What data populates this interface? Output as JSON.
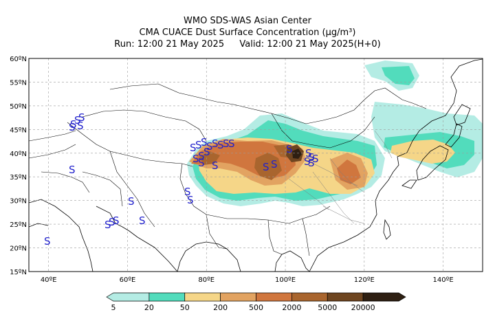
{
  "header": {
    "line1": "WMO SDS-WAS Asian Center",
    "line2": "CMA CUACE Dust Surface Concentration (μg/m³)",
    "run_label": "Run: 12:00 21 May 2025",
    "valid_label": "Valid: 12:00 21 May 2025(H+0)"
  },
  "map": {
    "lon_ticks": [
      "40ºE",
      "60ºE",
      "80ºE",
      "100ºE",
      "120ºE",
      "140ºE"
    ],
    "lat_ticks": [
      "60ºN",
      "55ºN",
      "50ºN",
      "45ºN",
      "40ºN",
      "35ºN",
      "30ºN",
      "25ºN",
      "20ºN",
      "15ºN"
    ],
    "lon_range": [
      35,
      150
    ],
    "lat_range": [
      15,
      60
    ],
    "station_marker": "S"
  },
  "colorbar": {
    "labels": [
      "5",
      "20",
      "50",
      "200",
      "500",
      "2000",
      "5000",
      "20000"
    ],
    "colors": [
      "#b4ece4",
      "#52dcbc",
      "#f5d688",
      "#e2a361",
      "#d0763e",
      "#a9652e",
      "#6e4520",
      "#2e1f12"
    ]
  }
}
